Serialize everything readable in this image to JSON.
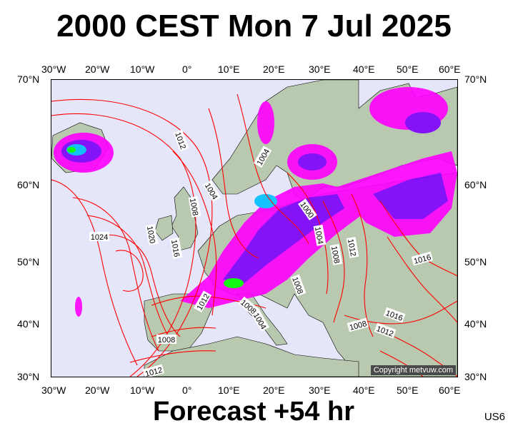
{
  "title": "2000 CEST Mon 7 Jul 2025",
  "forecast": "Forecast +54 hr",
  "model_code": "US6",
  "copyright": "Copyright metvuw.com",
  "axes": {
    "lon_labels": [
      "30°W",
      "20°W",
      "10°W",
      "0°",
      "10°E",
      "20°E",
      "30°E",
      "40°E",
      "50°E",
      "60°E"
    ],
    "lat_labels": [
      "70°N",
      "60°N",
      "50°N",
      "40°N",
      "30°N"
    ]
  },
  "isobar_labels": [
    {
      "text": "1012",
      "name": "isobar-1012-atlantic"
    },
    {
      "text": "1024",
      "name": "isobar-1024"
    },
    {
      "text": "1020",
      "name": "isobar-1020"
    },
    {
      "text": "1016",
      "name": "isobar-1016-biscay"
    },
    {
      "text": "1008",
      "name": "isobar-1008-uk"
    },
    {
      "text": "1004",
      "name": "isobar-1004-norway"
    },
    {
      "text": "1004",
      "name": "isobar-1004-sweden"
    },
    {
      "text": "1000",
      "name": "isobar-1000-baltic"
    },
    {
      "text": "1004",
      "name": "isobar-1004-belarus"
    },
    {
      "text": "1008",
      "name": "isobar-1008-ukraine"
    },
    {
      "text": "1012",
      "name": "isobar-1012-russia"
    },
    {
      "text": "1016",
      "name": "isobar-1016-urals"
    },
    {
      "text": "1008",
      "name": "isobar-1008-balkans"
    },
    {
      "text": "1012",
      "name": "isobar-1012-iberia"
    },
    {
      "text": "1008",
      "name": "isobar-1008-italy"
    },
    {
      "text": "1004",
      "name": "isobar-1004-italy"
    },
    {
      "text": "1008",
      "name": "isobar-1008-africa"
    },
    {
      "text": "1012",
      "name": "isobar-1012-africa"
    },
    {
      "text": "1008",
      "name": "isobar-1008-turkey"
    },
    {
      "text": "1016",
      "name": "isobar-1016-caspian"
    },
    {
      "text": "1012",
      "name": "isobar-1012-caspian"
    }
  ],
  "colors": {
    "sea": "#e6e6fa",
    "land": "#b9c9b0",
    "isobar": "#ff0000",
    "rain_light": "#ff00ff",
    "rain_medium": "#8000ff",
    "rain_heavy": "#0000ff",
    "rain_extreme": "#00ff00"
  }
}
